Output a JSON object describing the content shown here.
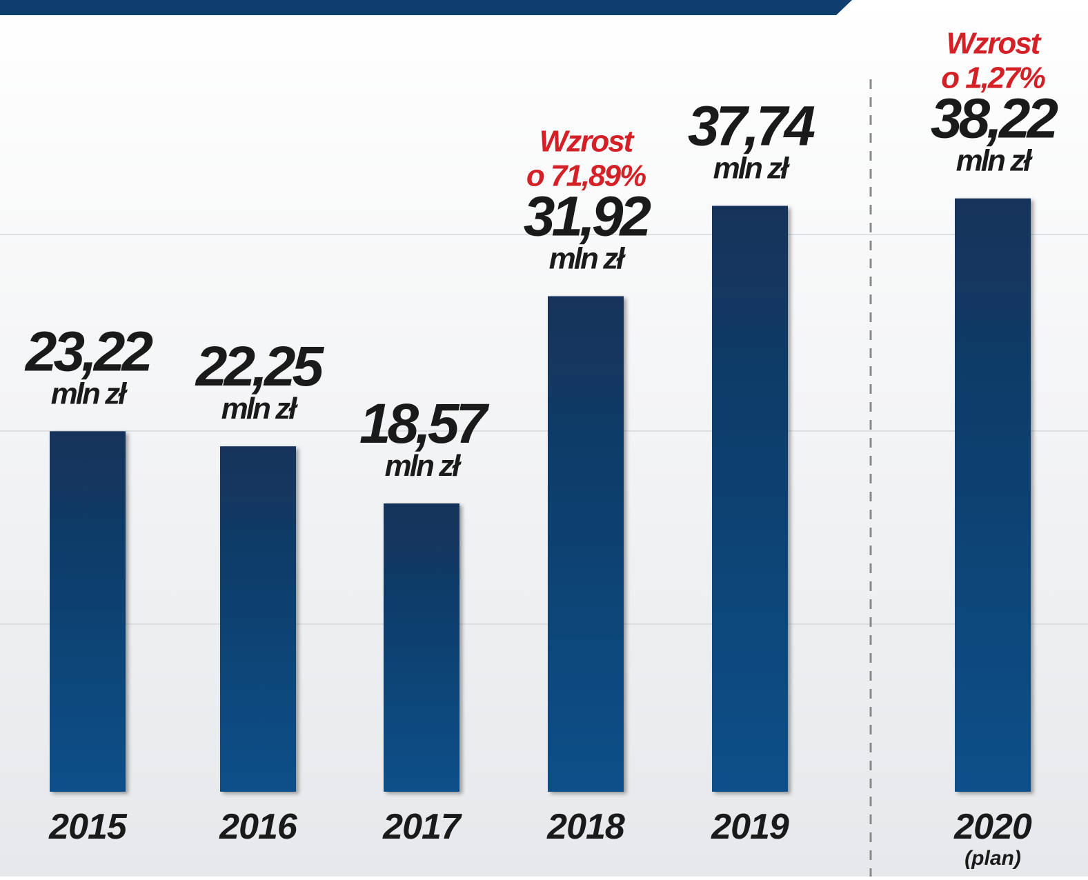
{
  "chart_data": {
    "type": "bar",
    "categories": [
      "2015",
      "2016",
      "2017",
      "2018",
      "2019",
      "2020"
    ],
    "values": [
      23.22,
      22.25,
      18.57,
      31.92,
      37.74,
      38.22
    ],
    "value_labels": [
      "23,22",
      "22,25",
      "18,57",
      "31,92",
      "37,74",
      "38,22"
    ],
    "unit": "mln zł",
    "colors": [
      "#13335a",
      "#0b5089"
    ],
    "ylim": [
      0,
      51
    ],
    "annotations": [
      {
        "category": "2018",
        "lines": [
          "Wzrost",
          "o 71,89%"
        ]
      },
      {
        "category": "2020",
        "lines": [
          "Wzrost",
          "o 1,27%"
        ]
      }
    ],
    "category_notes": [
      {
        "category": "2020",
        "text": "(plan)"
      }
    ]
  }
}
